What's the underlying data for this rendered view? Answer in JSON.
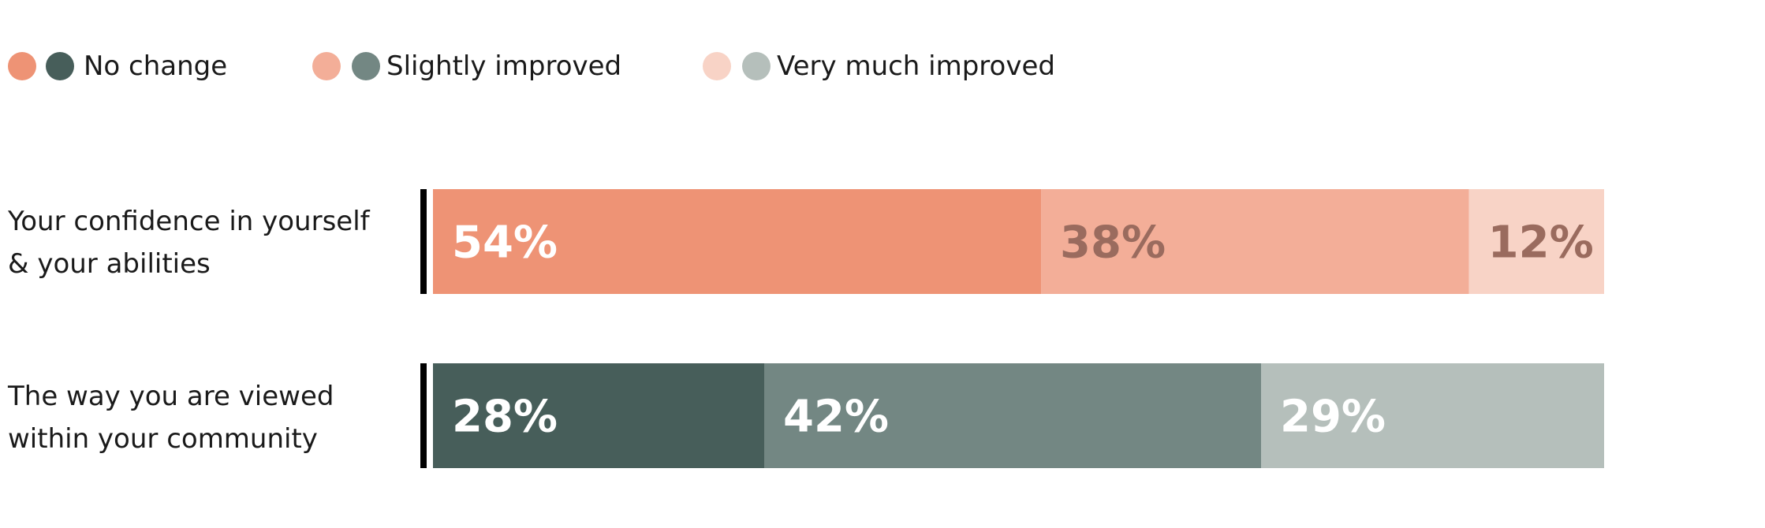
{
  "legend": [
    {
      "label": "No change",
      "colors": [
        "#ee9375",
        "#475e5a"
      ]
    },
    {
      "label": "Slightly improved",
      "colors": [
        "#f3ae98",
        "#738783"
      ]
    },
    {
      "label": "Very much improved",
      "colors": [
        "#f8d3c6",
        "#b5bfbb"
      ]
    }
  ],
  "rows": [
    {
      "label_lines": [
        "Your confidence in yourself",
        "& your abilities"
      ]
    },
    {
      "label_lines": [
        "The way you are viewed",
        "within your community"
      ]
    }
  ],
  "chart_data": {
    "type": "bar",
    "orientation": "horizontal",
    "stacked": true,
    "categories": [
      "Your confidence in yourself & your abilities",
      "The way you are viewed within your community"
    ],
    "series": [
      {
        "name": "No change",
        "values": [
          54,
          28
        ],
        "colors": [
          "#ee9375",
          "#475e5a"
        ],
        "label_colors": [
          "#ffffff",
          "#ffffff"
        ]
      },
      {
        "name": "Slightly improved",
        "values": [
          38,
          42
        ],
        "colors": [
          "#f3ae98",
          "#738783"
        ],
        "label_colors": [
          "#9a6b5e",
          "#ffffff"
        ]
      },
      {
        "name": "Very much improved",
        "values": [
          12,
          29
        ],
        "colors": [
          "#f8d3c6",
          "#b5bfbb"
        ],
        "label_colors": [
          "#9a6b5e",
          "#ffffff"
        ]
      }
    ],
    "data_labels": [
      [
        "54%",
        "38%",
        "12%"
      ],
      [
        "28%",
        "42%",
        "29%"
      ]
    ],
    "axis_color": "#000000"
  }
}
